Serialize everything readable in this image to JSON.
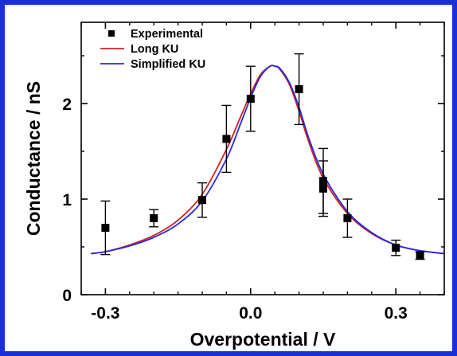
{
  "chart_data": {
    "type": "scatter",
    "xlabel": "Overpotential / V",
    "ylabel": "Conductance / nS",
    "xlim": [
      -0.35,
      0.4
    ],
    "ylim": [
      0,
      2.85
    ],
    "xticks": [
      -0.3,
      0.0,
      0.3
    ],
    "xtick_labels": [
      "-0.3",
      "0.0",
      "0.3"
    ],
    "yticks": [
      0,
      1,
      2
    ],
    "ytick_labels": [
      "0",
      "1",
      "2"
    ],
    "grid": false,
    "legend_position": "top-left",
    "series": [
      {
        "name": "Experimental",
        "kind": "points",
        "color": "#000000",
        "marker": "filled-square",
        "points": [
          {
            "x": -0.3,
            "y": 0.7,
            "err": 0.28
          },
          {
            "x": -0.2,
            "y": 0.8,
            "err": 0.09
          },
          {
            "x": -0.1,
            "y": 0.99,
            "err": 0.18
          },
          {
            "x": -0.05,
            "y": 1.63,
            "err": 0.35
          },
          {
            "x": 0.0,
            "y": 2.05,
            "err": 0.34
          },
          {
            "x": 0.1,
            "y": 2.15,
            "err": 0.37
          },
          {
            "x": 0.15,
            "y": 1.19,
            "err": 0.34
          },
          {
            "x": 0.15,
            "y": 1.11,
            "err": 0.29
          },
          {
            "x": 0.2,
            "y": 0.8,
            "err": 0.2
          },
          {
            "x": 0.3,
            "y": 0.49,
            "err": 0.08
          },
          {
            "x": 0.35,
            "y": 0.41,
            "err": 0.04
          }
        ]
      },
      {
        "name": "Long KU",
        "kind": "line",
        "color": "#d42020",
        "x": [
          -0.33,
          -0.3,
          -0.25,
          -0.2,
          -0.15,
          -0.1,
          -0.05,
          -0.02,
          0.0,
          0.02,
          0.04,
          0.05,
          0.06,
          0.08,
          0.1,
          0.12,
          0.15,
          0.2,
          0.25,
          0.3,
          0.35,
          0.4
        ],
        "y": [
          0.43,
          0.45,
          0.52,
          0.62,
          0.78,
          1.05,
          1.52,
          1.87,
          2.1,
          2.3,
          2.39,
          2.39,
          2.36,
          2.2,
          1.92,
          1.6,
          1.22,
          0.85,
          0.64,
          0.52,
          0.46,
          0.43
        ]
      },
      {
        "name": "Simplified KU",
        "kind": "line",
        "color": "#2a2ad8",
        "x": [
          -0.33,
          -0.3,
          -0.25,
          -0.2,
          -0.15,
          -0.1,
          -0.05,
          -0.02,
          0.0,
          0.02,
          0.04,
          0.05,
          0.06,
          0.08,
          0.1,
          0.12,
          0.15,
          0.2,
          0.25,
          0.3,
          0.35,
          0.4
        ],
        "y": [
          0.43,
          0.45,
          0.51,
          0.6,
          0.74,
          0.98,
          1.42,
          1.8,
          2.06,
          2.28,
          2.39,
          2.39,
          2.37,
          2.22,
          1.96,
          1.64,
          1.26,
          0.87,
          0.65,
          0.52,
          0.46,
          0.43
        ]
      }
    ]
  }
}
